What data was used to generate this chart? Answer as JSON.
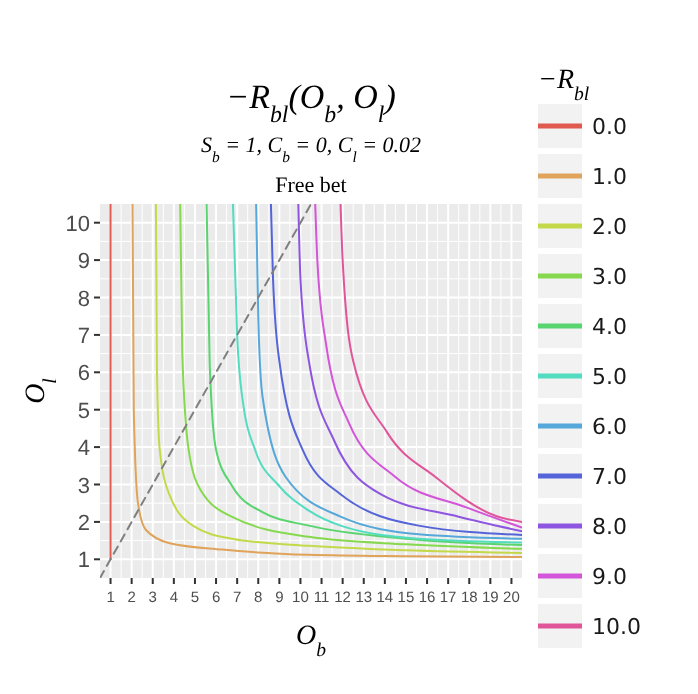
{
  "chart_data": {
    "type": "line",
    "title": "−R$_{bl}$(O$_{b}$, O$_{l}$)",
    "subtitle": "S$_{b}$ = 1, C$_{b}$ = 0, C$_{l}$ = 0.02",
    "annotations": [
      "Free bet"
    ],
    "xlabel": "O$_{b}$",
    "ylabel": "O$_{l}$",
    "legend_title": "−R$_{bl}$",
    "legend": "right",
    "grid": true,
    "xlim": [
      0.5,
      20.5
    ],
    "ylim": [
      0.5,
      10.5
    ],
    "xticks": [
      1,
      2,
      3,
      4,
      5,
      6,
      7,
      8,
      9,
      10,
      11,
      12,
      13,
      14,
      15,
      16,
      17,
      18,
      19,
      20
    ],
    "yticks": [
      1,
      2,
      3,
      4,
      5,
      6,
      7,
      8,
      9,
      10
    ],
    "series": [
      {
        "name": "0.0",
        "color": "#e05a4f",
        "x": [
          1.0,
          1.0
        ],
        "values": [
          1.0,
          10.5
        ]
      },
      {
        "name": "1.0",
        "color": "#e0a35a",
        "x": [
          2.04,
          2.1,
          2.3,
          2.67,
          3.8,
          6.3,
          10.4,
          15,
          20.5
        ],
        "values": [
          10.5,
          5.0,
          2.5,
          1.79,
          1.43,
          1.26,
          1.12,
          1.08,
          1.06
        ]
      },
      {
        "name": "2.0",
        "color": "#c4d94a",
        "x": [
          3.15,
          3.2,
          3.33,
          3.78,
          4.9,
          6.74,
          10.4,
          15,
          20.5
        ],
        "values": [
          10.5,
          6.0,
          3.93,
          2.74,
          1.9,
          1.55,
          1.36,
          1.24,
          1.17
        ]
      },
      {
        "name": "3.0",
        "color": "#86d94e",
        "x": [
          4.3,
          4.4,
          4.7,
          5.26,
          6.74,
          10.4,
          15,
          20.5
        ],
        "values": [
          10.5,
          6.5,
          3.93,
          2.86,
          2.14,
          1.6,
          1.4,
          1.28
        ]
      },
      {
        "name": "4.0",
        "color": "#5ad46e",
        "x": [
          5.55,
          5.7,
          6.0,
          6.74,
          8.2,
          10.4,
          15,
          20.5
        ],
        "values": [
          10.5,
          6.2,
          3.93,
          2.98,
          2.26,
          1.9,
          1.55,
          1.38
        ]
      },
      {
        "name": "5.0",
        "color": "#54dcc0",
        "x": [
          6.8,
          7.0,
          7.3,
          7.85,
          8.96,
          10.4,
          11.9,
          15.6,
          20.5
        ],
        "values": [
          10.5,
          7.0,
          5.1,
          3.93,
          2.98,
          2.3,
          1.9,
          1.55,
          1.45
        ]
      },
      {
        "name": "6.0",
        "color": "#55a8d9",
        "x": [
          7.9,
          8.0,
          8.2,
          9.3,
          11.9,
          15.6,
          20.5
        ],
        "values": [
          10.5,
          7.5,
          5.36,
          3.2,
          2.14,
          1.67,
          1.55
        ]
      },
      {
        "name": "7.0",
        "color": "#5564d9",
        "x": [
          8.6,
          8.7,
          9.0,
          10.1,
          11.9,
          15.6,
          20.5
        ],
        "values": [
          10.5,
          8.5,
          6.3,
          3.93,
          2.74,
          1.9,
          1.65
        ]
      },
      {
        "name": "8.0",
        "color": "#8d55e0",
        "x": [
          9.9,
          10.0,
          10.4,
          11.6,
          13.8,
          17.5,
          20.5
        ],
        "values": [
          10.5,
          8.5,
          6.3,
          4.17,
          2.74,
          2.14,
          1.75
        ]
      },
      {
        "name": "9.0",
        "color": "#d355d9",
        "x": [
          10.7,
          10.8,
          11.2,
          12.3,
          14.5,
          17.9,
          20.5
        ],
        "values": [
          10.5,
          9.0,
          6.8,
          4.64,
          3.2,
          2.38,
          1.85
        ]
      },
      {
        "name": "10.0",
        "color": "#e0559a",
        "x": [
          11.9,
          12.0,
          12.5,
          14.1,
          16.4,
          19.3,
          20.5
        ],
        "values": [
          10.5,
          9.0,
          6.3,
          4.4,
          3.2,
          2.15,
          2.0
        ]
      },
      {
        "color": "#7f7f7f",
        "line_style": "dashed",
        "x": [
          0.5,
          10.5
        ],
        "values": [
          0.5,
          10.5
        ]
      }
    ]
  }
}
